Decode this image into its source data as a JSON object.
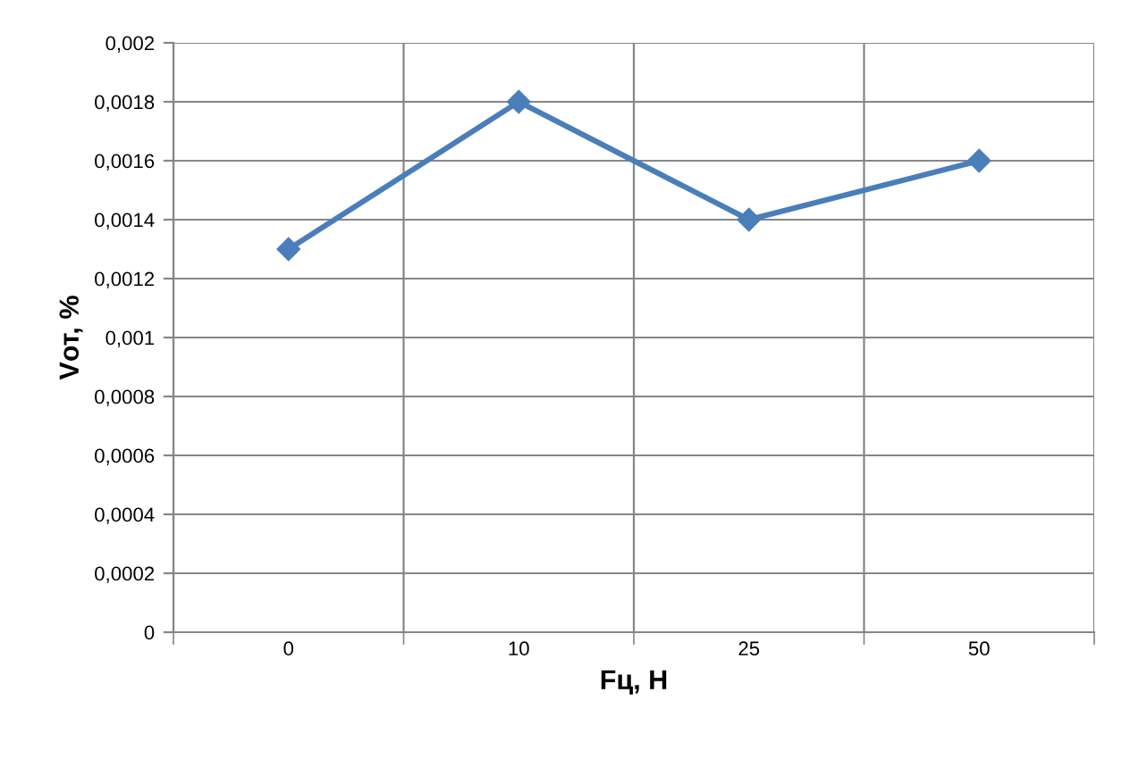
{
  "chart_data": {
    "type": "line",
    "xlabel": "Fц, Н",
    "ylabel": "Vот, %",
    "categories": [
      "0",
      "10",
      "25",
      "50"
    ],
    "series": [
      {
        "color": "#4a7ebb",
        "values": [
          0.0013,
          0.0018,
          0.0014,
          0.0016
        ]
      }
    ],
    "ylim": [
      0,
      0.002
    ],
    "yticks": [
      0,
      {
        "value": 0.0002,
        "label": "0,0002"
      },
      {
        "value": 0.0004,
        "label": "0,0004"
      },
      {
        "value": 0.0006,
        "label": "0,0006"
      },
      {
        "value": 0.0008,
        "label": "0,0008"
      },
      {
        "value": 0.001,
        "label": "0,001"
      },
      {
        "value": 0.0012,
        "label": "0,0012"
      },
      {
        "value": 0.0014,
        "label": "0,0014"
      },
      {
        "value": 0.0016,
        "label": "0,0016"
      },
      {
        "value": 0.0018,
        "label": "0,0018"
      },
      {
        "value": 0.002,
        "label": "0,002"
      }
    ],
    "grid": true,
    "marker": "diamond",
    "line_style": "solid",
    "legend": false
  }
}
